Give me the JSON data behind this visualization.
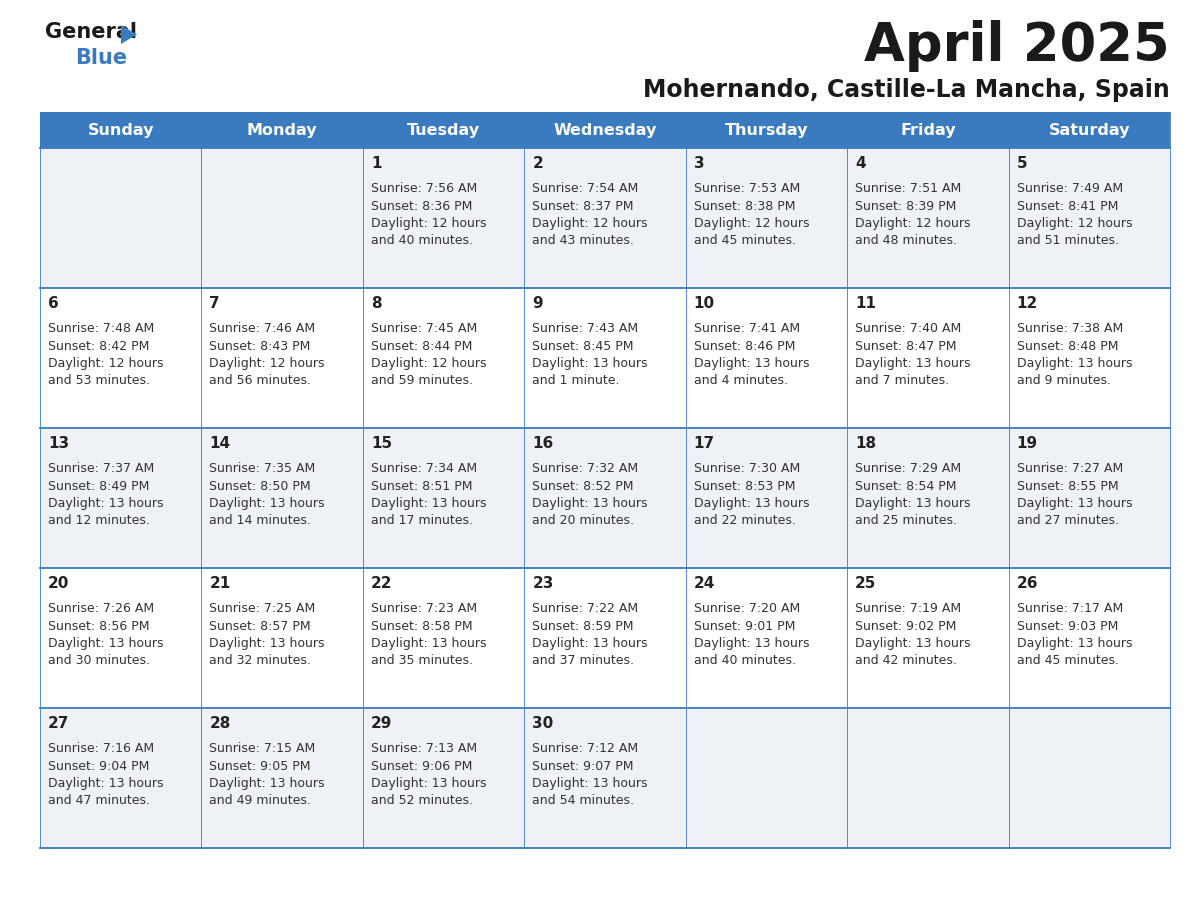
{
  "title": "April 2025",
  "subtitle": "Mohernando, Castille-La Mancha, Spain",
  "header_bg_color": "#3a7bbf",
  "header_text_color": "#ffffff",
  "days_of_week": [
    "Sunday",
    "Monday",
    "Tuesday",
    "Wednesday",
    "Thursday",
    "Friday",
    "Saturday"
  ],
  "bg_color": "#ffffff",
  "cell_bg_even": "#eef2f7",
  "cell_bg_odd": "#ffffff",
  "cell_border_color": "#3a7bbf",
  "day_num_color": "#222222",
  "info_color": "#333333",
  "title_color": "#1a1a1a",
  "subtitle_color": "#1a1a1a",
  "logo_general_color": "#1a1a1a",
  "logo_blue_color": "#3a7bbf",
  "logo_triangle_color": "#3a7bbf",
  "calendar_data": [
    [
      null,
      null,
      {
        "day": 1,
        "sunrise": "7:56 AM",
        "sunset": "8:36 PM",
        "daylight": "12 hours and 40 minutes."
      },
      {
        "day": 2,
        "sunrise": "7:54 AM",
        "sunset": "8:37 PM",
        "daylight": "12 hours and 43 minutes."
      },
      {
        "day": 3,
        "sunrise": "7:53 AM",
        "sunset": "8:38 PM",
        "daylight": "12 hours and 45 minutes."
      },
      {
        "day": 4,
        "sunrise": "7:51 AM",
        "sunset": "8:39 PM",
        "daylight": "12 hours and 48 minutes."
      },
      {
        "day": 5,
        "sunrise": "7:49 AM",
        "sunset": "8:41 PM",
        "daylight": "12 hours and 51 minutes."
      }
    ],
    [
      {
        "day": 6,
        "sunrise": "7:48 AM",
        "sunset": "8:42 PM",
        "daylight": "12 hours and 53 minutes."
      },
      {
        "day": 7,
        "sunrise": "7:46 AM",
        "sunset": "8:43 PM",
        "daylight": "12 hours and 56 minutes."
      },
      {
        "day": 8,
        "sunrise": "7:45 AM",
        "sunset": "8:44 PM",
        "daylight": "12 hours and 59 minutes."
      },
      {
        "day": 9,
        "sunrise": "7:43 AM",
        "sunset": "8:45 PM",
        "daylight": "13 hours and 1 minute."
      },
      {
        "day": 10,
        "sunrise": "7:41 AM",
        "sunset": "8:46 PM",
        "daylight": "13 hours and 4 minutes."
      },
      {
        "day": 11,
        "sunrise": "7:40 AM",
        "sunset": "8:47 PM",
        "daylight": "13 hours and 7 minutes."
      },
      {
        "day": 12,
        "sunrise": "7:38 AM",
        "sunset": "8:48 PM",
        "daylight": "13 hours and 9 minutes."
      }
    ],
    [
      {
        "day": 13,
        "sunrise": "7:37 AM",
        "sunset": "8:49 PM",
        "daylight": "13 hours and 12 minutes."
      },
      {
        "day": 14,
        "sunrise": "7:35 AM",
        "sunset": "8:50 PM",
        "daylight": "13 hours and 14 minutes."
      },
      {
        "day": 15,
        "sunrise": "7:34 AM",
        "sunset": "8:51 PM",
        "daylight": "13 hours and 17 minutes."
      },
      {
        "day": 16,
        "sunrise": "7:32 AM",
        "sunset": "8:52 PM",
        "daylight": "13 hours and 20 minutes."
      },
      {
        "day": 17,
        "sunrise": "7:30 AM",
        "sunset": "8:53 PM",
        "daylight": "13 hours and 22 minutes."
      },
      {
        "day": 18,
        "sunrise": "7:29 AM",
        "sunset": "8:54 PM",
        "daylight": "13 hours and 25 minutes."
      },
      {
        "day": 19,
        "sunrise": "7:27 AM",
        "sunset": "8:55 PM",
        "daylight": "13 hours and 27 minutes."
      }
    ],
    [
      {
        "day": 20,
        "sunrise": "7:26 AM",
        "sunset": "8:56 PM",
        "daylight": "13 hours and 30 minutes."
      },
      {
        "day": 21,
        "sunrise": "7:25 AM",
        "sunset": "8:57 PM",
        "daylight": "13 hours and 32 minutes."
      },
      {
        "day": 22,
        "sunrise": "7:23 AM",
        "sunset": "8:58 PM",
        "daylight": "13 hours and 35 minutes."
      },
      {
        "day": 23,
        "sunrise": "7:22 AM",
        "sunset": "8:59 PM",
        "daylight": "13 hours and 37 minutes."
      },
      {
        "day": 24,
        "sunrise": "7:20 AM",
        "sunset": "9:01 PM",
        "daylight": "13 hours and 40 minutes."
      },
      {
        "day": 25,
        "sunrise": "7:19 AM",
        "sunset": "9:02 PM",
        "daylight": "13 hours and 42 minutes."
      },
      {
        "day": 26,
        "sunrise": "7:17 AM",
        "sunset": "9:03 PM",
        "daylight": "13 hours and 45 minutes."
      }
    ],
    [
      {
        "day": 27,
        "sunrise": "7:16 AM",
        "sunset": "9:04 PM",
        "daylight": "13 hours and 47 minutes."
      },
      {
        "day": 28,
        "sunrise": "7:15 AM",
        "sunset": "9:05 PM",
        "daylight": "13 hours and 49 minutes."
      },
      {
        "day": 29,
        "sunrise": "7:13 AM",
        "sunset": "9:06 PM",
        "daylight": "13 hours and 52 minutes."
      },
      {
        "day": 30,
        "sunrise": "7:12 AM",
        "sunset": "9:07 PM",
        "daylight": "13 hours and 54 minutes."
      },
      null,
      null,
      null
    ]
  ]
}
